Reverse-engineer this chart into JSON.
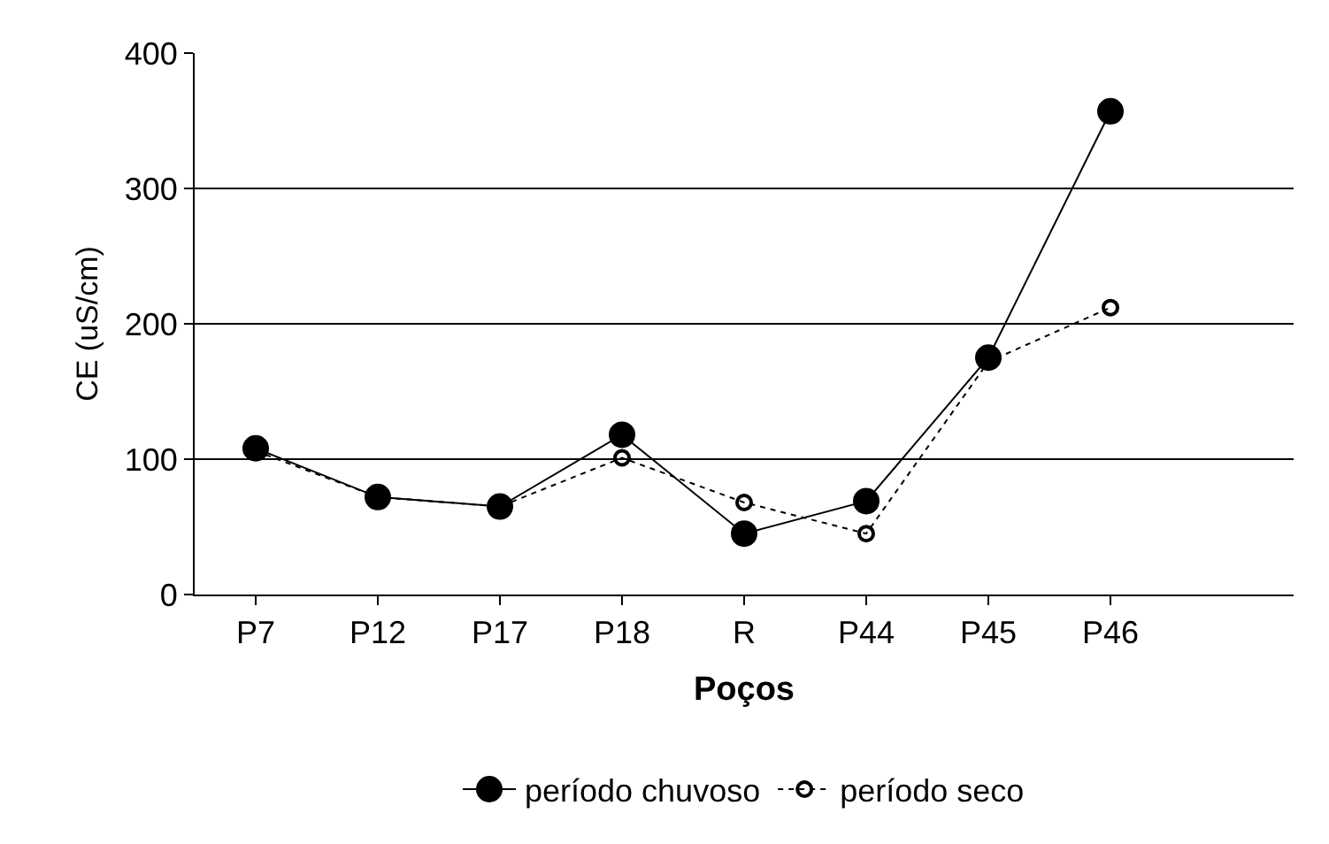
{
  "chart_data": {
    "type": "line",
    "xlabel": "Poços",
    "ylabel": "CE (uS/cm)",
    "categories": [
      "P7",
      "P12",
      "P17",
      "P18",
      "R",
      "P44",
      "P45",
      "P46",
      null
    ],
    "series": [
      {
        "name": "período chuvoso",
        "color": "#000000",
        "values": [
          108,
          72,
          65,
          118,
          45,
          69,
          175,
          357,
          null
        ],
        "marker": "circle",
        "line_style": "solid"
      },
      {
        "name": "período seco",
        "color": "#000000",
        "values": [
          106,
          72,
          65,
          101,
          68,
          45,
          172,
          212,
          null
        ],
        "marker": "circle-open",
        "line_style": "dotted"
      }
    ],
    "ylim": [
      0,
      400
    ],
    "yticks": [
      0,
      100,
      200,
      300,
      400
    ],
    "grid": "y",
    "legend": "bottom"
  }
}
